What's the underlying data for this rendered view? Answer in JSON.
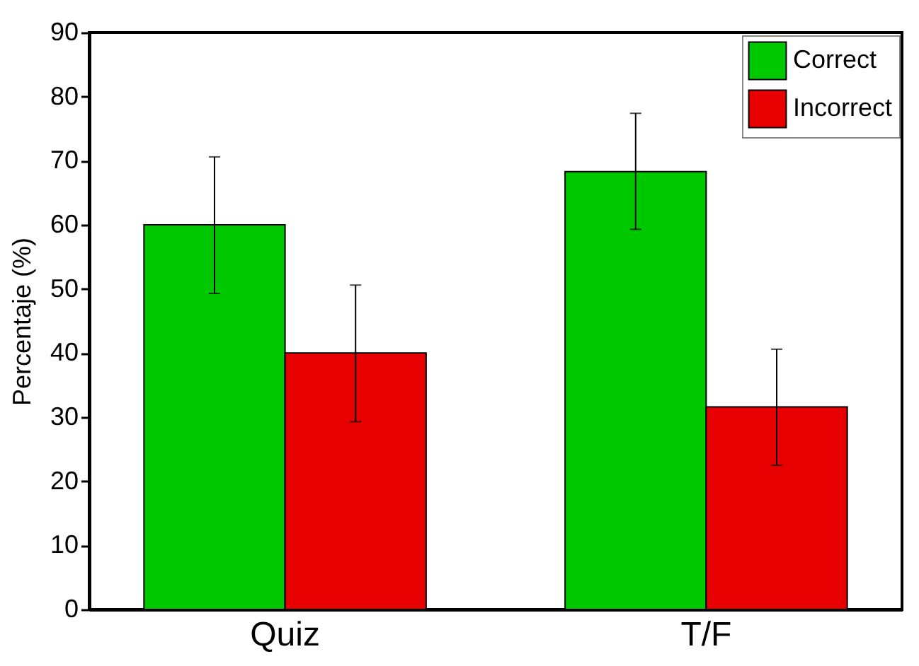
{
  "chart_data": {
    "type": "bar",
    "ylabel": "Percentaje (%)",
    "categories": [
      "Quiz",
      "T/F"
    ],
    "series": [
      {
        "name": "Correct",
        "color": "#00c800",
        "values": [
          60,
          68.3
        ],
        "errors": [
          [
            49.3,
            70.6
          ],
          [
            59.3,
            77.4
          ]
        ]
      },
      {
        "name": "Incorrect",
        "color": "#e80000",
        "values": [
          40,
          31.6
        ],
        "errors": [
          [
            29.3,
            50.6
          ],
          [
            22.5,
            40.6
          ]
        ]
      }
    ],
    "ylim": [
      0,
      90
    ],
    "yticks": [
      0,
      10,
      20,
      30,
      40,
      50,
      60,
      70,
      80,
      90
    ],
    "grid": false,
    "legend": "top right"
  }
}
